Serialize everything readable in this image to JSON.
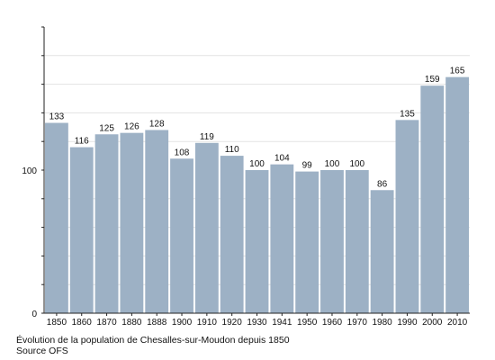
{
  "chart_data": {
    "type": "bar",
    "categories": [
      "1850",
      "1860",
      "1870",
      "1880",
      "1888",
      "1900",
      "1910",
      "1920",
      "1930",
      "1941",
      "1950",
      "1960",
      "1970",
      "1980",
      "1990",
      "2000",
      "2010"
    ],
    "values": [
      133,
      116,
      125,
      126,
      128,
      108,
      119,
      110,
      100,
      104,
      99,
      100,
      100,
      86,
      135,
      159,
      165
    ],
    "y_ticks": [
      0,
      100
    ],
    "ylim": [
      0,
      200
    ],
    "bar_color": "#9db1c5",
    "grid": true,
    "title": "",
    "xlabel": "",
    "ylabel": ""
  },
  "captions": {
    "line1": "Évolution de la population de Chesalles-sur-Moudon depuis 1850",
    "line2": "Source OFS"
  }
}
